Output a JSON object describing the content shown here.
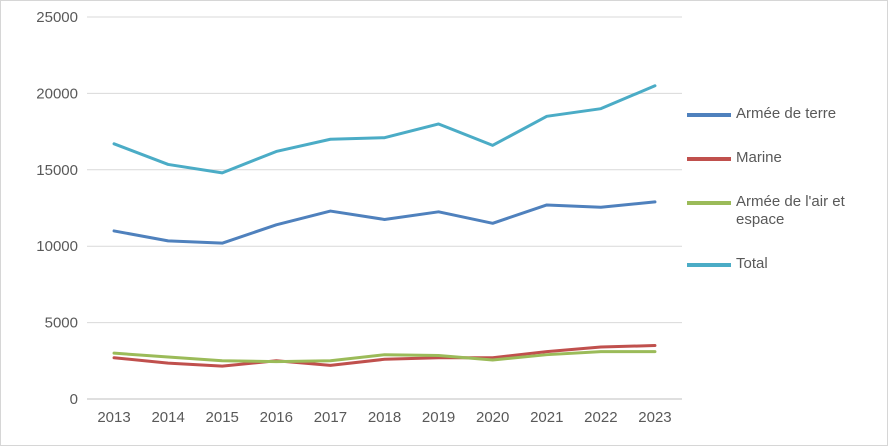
{
  "chart_data": {
    "type": "line",
    "title": "",
    "xlabel": "",
    "ylabel": "",
    "categories": [
      "2013",
      "2014",
      "2015",
      "2016",
      "2017",
      "2018",
      "2019",
      "2020",
      "2021",
      "2022",
      "2023"
    ],
    "series": [
      {
        "name": "Armée de terre",
        "color": "#4F81BD",
        "values": [
          11000,
          10350,
          10200,
          11400,
          12300,
          11750,
          12250,
          11500,
          12700,
          12550,
          12900
        ]
      },
      {
        "name": "Marine",
        "color": "#C0504D",
        "values": [
          2700,
          2350,
          2150,
          2500,
          2200,
          2600,
          2700,
          2700,
          3100,
          3400,
          3500
        ]
      },
      {
        "name": "Armée de l'air et espace",
        "color": "#9BBB59",
        "values": [
          3000,
          2750,
          2500,
          2450,
          2500,
          2900,
          2850,
          2550,
          2900,
          3100,
          3100
        ]
      },
      {
        "name": "Total",
        "color": "#4BACC6",
        "values": [
          16700,
          15350,
          14800,
          16200,
          17000,
          17100,
          18000,
          16600,
          18500,
          19000,
          20500
        ]
      }
    ],
    "ylim": [
      0,
      25000
    ],
    "y_ticks": [
      0,
      5000,
      10000,
      15000,
      20000,
      25000
    ],
    "grid": true,
    "legend_position": "right",
    "axis_text_color": "#595959",
    "gridline_color": "#d9d9d9",
    "axis_line_color": "#bfbfbf"
  }
}
